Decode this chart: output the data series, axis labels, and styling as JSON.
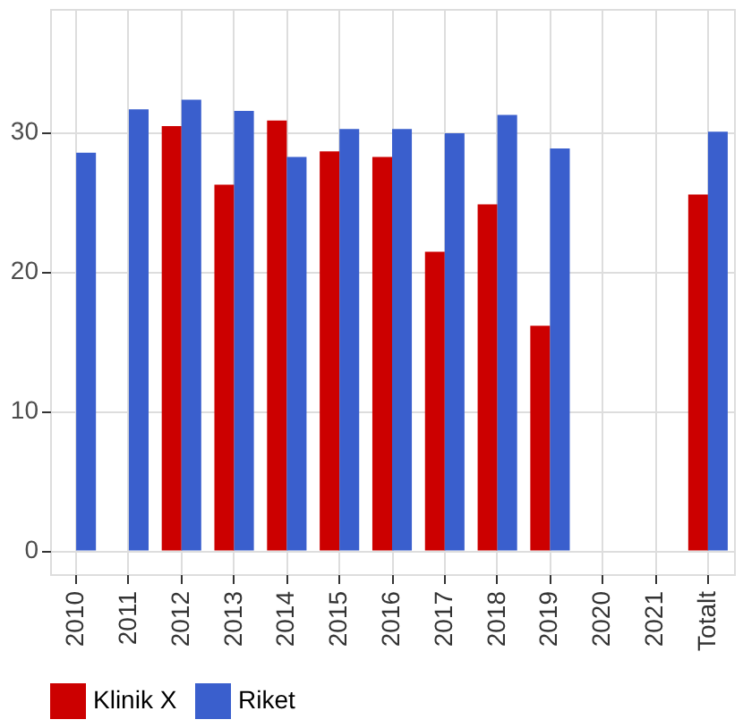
{
  "chart_data": {
    "type": "bar",
    "categories": [
      "2010",
      "2011",
      "2012",
      "2013",
      "2014",
      "2015",
      "2016",
      "2017",
      "2018",
      "2019",
      "2020",
      "2021",
      "Totalt"
    ],
    "series": [
      {
        "name": "Klinik X",
        "color": "#cc0000",
        "values": [
          null,
          null,
          30.4,
          26.2,
          30.8,
          28.6,
          28.2,
          21.4,
          24.8,
          16.1,
          null,
          null,
          25.5
        ]
      },
      {
        "name": "Riket",
        "color": "#3a5fcd",
        "values": [
          28.5,
          31.6,
          32.3,
          31.5,
          28.2,
          30.2,
          30.2,
          29.9,
          31.2,
          28.8,
          null,
          null,
          30.0
        ]
      }
    ],
    "ylim": [
      -1.7,
      38.8
    ],
    "yticks": [
      0,
      10,
      20,
      30
    ],
    "grid": true,
    "legend": "bottom"
  }
}
